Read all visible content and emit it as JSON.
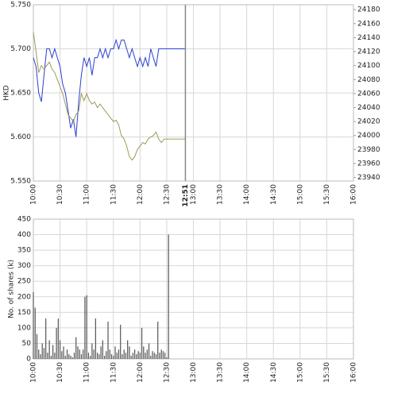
{
  "chart_data": [
    {
      "type": "line",
      "y_label": "HKD",
      "xlim": [
        600,
        960
      ],
      "xticks": [
        {
          "value": 600,
          "label": "10:00"
        },
        {
          "value": 630,
          "label": "10:30"
        },
        {
          "value": 660,
          "label": "11:00"
        },
        {
          "value": 690,
          "label": "11:30"
        },
        {
          "value": 720,
          "label": "12:00"
        },
        {
          "value": 750,
          "label": "12:30"
        },
        {
          "value": 780,
          "label": "13:00"
        },
        {
          "value": 810,
          "label": "13:30"
        },
        {
          "value": 840,
          "label": "14:00"
        },
        {
          "value": 870,
          "label": "14:30"
        },
        {
          "value": 900,
          "label": "15:00"
        },
        {
          "value": 930,
          "label": "15:30"
        },
        {
          "value": 960,
          "label": "16:00"
        }
      ],
      "marker": {
        "value": 771,
        "label": "12:51",
        "color": "#888888"
      },
      "ylim": [
        5.55,
        5.75
      ],
      "yticks": [
        {
          "value": 5.55,
          "label": "5.550"
        },
        {
          "value": 5.6,
          "label": "5.600"
        },
        {
          "value": 5.65,
          "label": "5.650"
        },
        {
          "value": 5.7,
          "label": "5.700"
        },
        {
          "value": 5.75,
          "label": "5.750"
        }
      ],
      "y2lim": [
        23935,
        24187
      ],
      "y2ticks": [
        23940,
        23960,
        23980,
        24000,
        24020,
        24040,
        24060,
        24080,
        24100,
        24120,
        24140,
        24160,
        24180
      ],
      "grid": true,
      "x": [
        600,
        603,
        606,
        609,
        612,
        615,
        618,
        621,
        624,
        627,
        630,
        633,
        636,
        639,
        642,
        645,
        648,
        651,
        654,
        657,
        660,
        663,
        666,
        669,
        672,
        675,
        678,
        681,
        684,
        687,
        690,
        693,
        696,
        699,
        702,
        705,
        708,
        711,
        714,
        717,
        720,
        723,
        726,
        729,
        732,
        735,
        738,
        741,
        744,
        747,
        750,
        753,
        756,
        759,
        762,
        765,
        768,
        771
      ],
      "series": [
        {
          "color": "#2a3fd0",
          "values": [
            5.69,
            5.68,
            5.65,
            5.64,
            5.67,
            5.7,
            5.7,
            5.69,
            5.7,
            5.69,
            5.68,
            5.66,
            5.65,
            5.63,
            5.61,
            5.62,
            5.6,
            5.64,
            5.67,
            5.69,
            5.68,
            5.69,
            5.67,
            5.69,
            5.69,
            5.7,
            5.69,
            5.7,
            5.69,
            5.7,
            5.7,
            5.71,
            5.7,
            5.71,
            5.71,
            5.7,
            5.69,
            5.7,
            5.69,
            5.68,
            5.69,
            5.68,
            5.69,
            5.68,
            5.7,
            5.69,
            5.68,
            5.7,
            5.7,
            5.7,
            5.7,
            5.7,
            5.7,
            5.7,
            5.7,
            5.7,
            5.7,
            5.7
          ]
        },
        {
          "color": "#9c9a5a",
          "axis": "y2",
          "values": [
            24148,
            24120,
            24090,
            24100,
            24095,
            24100,
            24105,
            24095,
            24090,
            24080,
            24070,
            24060,
            24045,
            24030,
            24025,
            24020,
            24030,
            24035,
            24060,
            24050,
            24060,
            24050,
            24045,
            24048,
            24040,
            24045,
            24040,
            24035,
            24030,
            24025,
            24020,
            24022,
            24015,
            24000,
            23995,
            23985,
            23970,
            23965,
            23970,
            23980,
            23985,
            23990,
            23988,
            23995,
            23998,
            24000,
            24005,
            23995,
            23990,
            23995,
            23995,
            23995,
            23995,
            23995,
            23995,
            23995,
            23995,
            23995
          ]
        }
      ]
    },
    {
      "type": "bar",
      "y_label": "No. of shares (k)",
      "xlim": [
        600,
        960
      ],
      "xticks": [
        {
          "value": 600,
          "label": "10:00"
        },
        {
          "value": 630,
          "label": "10:30"
        },
        {
          "value": 660,
          "label": "11:00"
        },
        {
          "value": 690,
          "label": "11:30"
        },
        {
          "value": 720,
          "label": "12:00"
        },
        {
          "value": 750,
          "label": "12:30"
        },
        {
          "value": 780,
          "label": "13:00"
        },
        {
          "value": 810,
          "label": "13:30"
        },
        {
          "value": 840,
          "label": "14:00"
        },
        {
          "value": 870,
          "label": "14:30"
        },
        {
          "value": 900,
          "label": "15:00"
        },
        {
          "value": 930,
          "label": "15:30"
        },
        {
          "value": 960,
          "label": "16:00"
        }
      ],
      "ylim": [
        0,
        450
      ],
      "yticks": [
        0,
        50,
        100,
        150,
        200,
        250,
        300,
        350,
        400,
        450
      ],
      "grid": true,
      "color": "#555555",
      "x": [
        600,
        602,
        604,
        606,
        608,
        610,
        612,
        614,
        616,
        618,
        620,
        622,
        624,
        626,
        628,
        630,
        632,
        634,
        636,
        638,
        640,
        642,
        644,
        646,
        648,
        650,
        652,
        654,
        656,
        658,
        660,
        662,
        664,
        666,
        668,
        670,
        672,
        674,
        676,
        678,
        680,
        682,
        684,
        686,
        688,
        690,
        692,
        694,
        696,
        698,
        700,
        702,
        704,
        706,
        708,
        710,
        712,
        714,
        716,
        718,
        720,
        722,
        724,
        726,
        728,
        730,
        732,
        734,
        736,
        738,
        740,
        742,
        744,
        746,
        748,
        750,
        752
      ],
      "values": [
        215,
        165,
        80,
        30,
        15,
        50,
        35,
        130,
        20,
        60,
        10,
        45,
        20,
        100,
        130,
        60,
        25,
        40,
        10,
        30,
        15,
        10,
        5,
        20,
        70,
        40,
        30,
        15,
        30,
        200,
        205,
        20,
        10,
        50,
        30,
        130,
        20,
        15,
        40,
        60,
        10,
        25,
        120,
        30,
        15,
        10,
        40,
        20,
        30,
        110,
        15,
        30,
        20,
        60,
        40,
        10,
        20,
        30,
        15,
        25,
        20,
        100,
        40,
        20,
        30,
        50,
        10,
        25,
        20,
        15,
        120,
        20,
        30,
        25,
        20,
        5,
        400
      ]
    }
  ]
}
